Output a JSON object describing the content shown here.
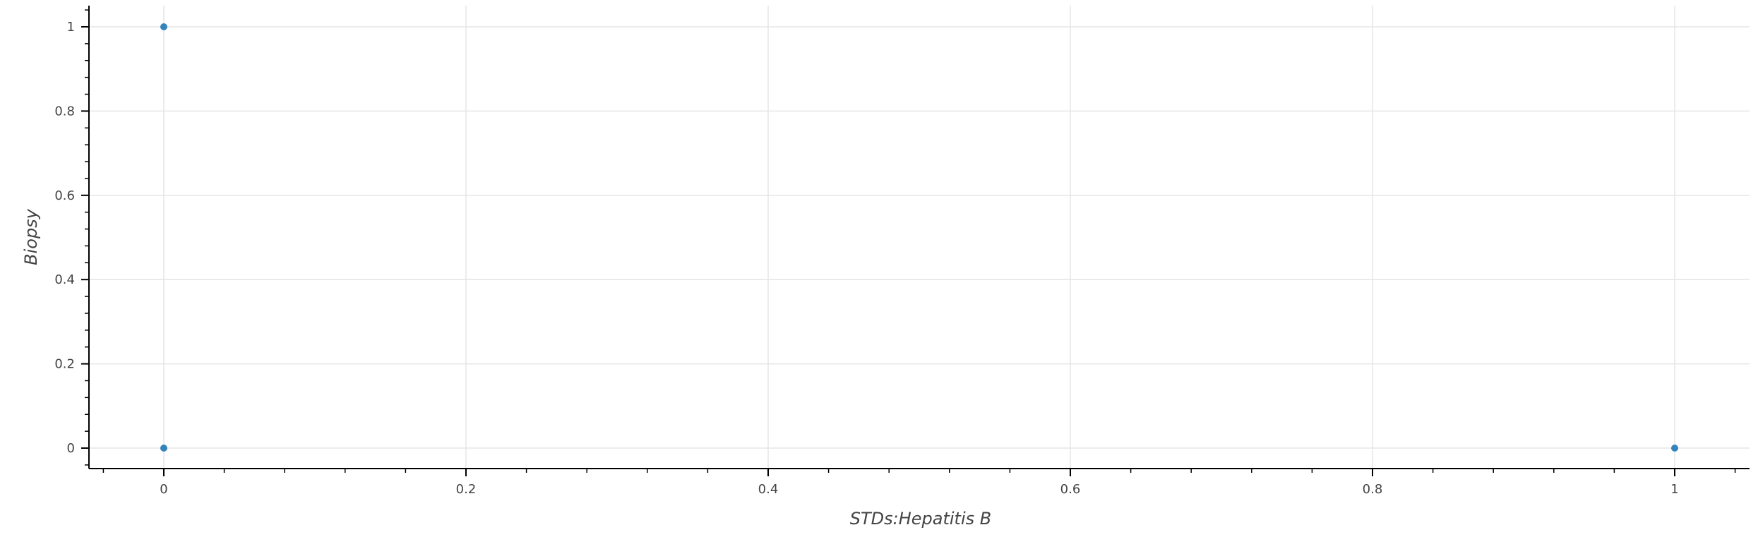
{
  "chart_data": {
    "type": "scatter",
    "xlabel": "STDs:Hepatitis B",
    "ylabel": "Biopsy",
    "xlim": [
      -0.05,
      1.05
    ],
    "ylim": [
      -0.05,
      1.05
    ],
    "x_ticks": [
      0,
      0.2,
      0.4,
      0.6,
      0.8,
      1
    ],
    "x_tick_labels": [
      "0",
      "0.2",
      "0.4",
      "0.6",
      "0.8",
      "1"
    ],
    "y_ticks": [
      0,
      0.2,
      0.4,
      0.6,
      0.8,
      1
    ],
    "y_tick_labels": [
      "0",
      "0.2",
      "0.4",
      "0.6",
      "0.8",
      "1"
    ],
    "grid": true,
    "marker_color": "#1f77b4",
    "points": [
      {
        "x": 0,
        "y": 1
      },
      {
        "x": 0,
        "y": 0
      },
      {
        "x": 1,
        "y": 0
      }
    ]
  }
}
